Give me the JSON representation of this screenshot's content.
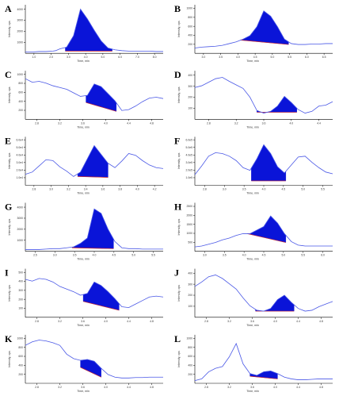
{
  "figure": {
    "panels": [
      {
        "letter": "A",
        "ylabel": "Intensity, cps",
        "xlabel": "Time, min",
        "xticks": [
          "1.0",
          "2.0",
          "3.0",
          "4.0",
          "5.0",
          "6.0",
          "7.0",
          "8.0"
        ],
        "yticks": [
          "1000",
          "2000",
          "3000",
          "4000"
        ]
      },
      {
        "letter": "B",
        "ylabel": "Intensity, cps",
        "xlabel": "Time, min",
        "xticks": [
          "3.0",
          "3.5",
          "4.0",
          "4.5",
          "5.0",
          "5.5",
          "6.0",
          "6.5"
        ],
        "yticks": [
          "200",
          "400",
          "600",
          "800",
          "1000"
        ]
      },
      {
        "letter": "C",
        "ylabel": "Intensity, cps",
        "xlabel": "Time, min",
        "xticks": [
          "2.8",
          "3.2",
          "3.6",
          "4.0",
          "4.4",
          "4.8"
        ],
        "yticks": [
          "200",
          "400",
          "600",
          "800",
          "1000"
        ]
      },
      {
        "letter": "D",
        "ylabel": "Intensity, cps",
        "xlabel": "Time, min",
        "xticks": [
          "2.8",
          "3.2",
          "3.6",
          "4.0",
          "4.4"
        ],
        "yticks": [
          "100",
          "200",
          "300",
          "400"
        ]
      },
      {
        "letter": "E",
        "ylabel": "Intensity, cps",
        "xlabel": "Time, min",
        "xticks": [
          "2.8",
          "3.0",
          "3.2",
          "3.4",
          "3.6",
          "3.8",
          "4.0",
          "4.2"
        ],
        "yticks": [
          "1.0e4",
          "2.0e4",
          "3.0e4",
          "4.0e4",
          "5.0e4",
          "6.0e4"
        ]
      },
      {
        "letter": "F",
        "ylabel": "Intensity, cps",
        "xlabel": "Time, min",
        "xticks": [
          "2.8",
          "3.0",
          "3.5",
          "4.0",
          "4.5",
          "5.0",
          "5.5"
        ],
        "yticks": [
          "1.0e5",
          "2.0e5",
          "3.0e5",
          "4.0e5",
          "5.0e5",
          "6.0e5"
        ]
      },
      {
        "letter": "G",
        "ylabel": "Intensity, cps",
        "xlabel": "Time, min",
        "xticks": [
          "2.5",
          "3.0",
          "3.5",
          "4.0",
          "4.5",
          "5.0",
          "5.5"
        ],
        "yticks": [
          "1000",
          "2000",
          "3000",
          "4000"
        ]
      },
      {
        "letter": "H",
        "ylabel": "Intensity, cps",
        "xlabel": "Time, min",
        "xticks": [
          "3.0",
          "3.5",
          "4.0",
          "4.5",
          "5.0",
          "5.5",
          "6.0"
        ],
        "yticks": [
          "500",
          "1000",
          "1500",
          "2000",
          "2500"
        ]
      },
      {
        "letter": "I",
        "ylabel": "Intensity, cps",
        "xlabel": "Time, min",
        "xticks": [
          "2.8",
          "3.2",
          "3.6",
          "4.0",
          "4.4",
          "4.8"
        ],
        "yticks": [
          "100",
          "200",
          "300",
          "400",
          "500"
        ]
      },
      {
        "letter": "J",
        "ylabel": "Intensity, cps",
        "xlabel": "Time, min",
        "xticks": [
          "2.8",
          "3.2",
          "3.6",
          "4.0",
          "4.4",
          "4.8"
        ],
        "yticks": [
          "100",
          "200",
          "300",
          "400"
        ]
      },
      {
        "letter": "K",
        "ylabel": "Intensity, cps",
        "xlabel": "Time, min",
        "xticks": [
          "2.8",
          "3.2",
          "3.6",
          "4.0",
          "4.4",
          "4.8"
        ],
        "yticks": [
          "200",
          "400",
          "600",
          "800",
          "1000"
        ]
      },
      {
        "letter": "L",
        "ylabel": "Intensity, cps",
        "xlabel": "Time, min",
        "xticks": [
          "2.8",
          "3.2",
          "3.6",
          "4.0",
          "4.4",
          "4.8"
        ],
        "yticks": [
          "200",
          "400",
          "600",
          "800",
          "1000"
        ]
      }
    ]
  },
  "colors": {
    "trace": "#4a58e6",
    "peak_fill": "#0a14d8",
    "baseline": "#d02a2a"
  },
  "chart_data": [
    {
      "panel": "A",
      "type": "line",
      "x": [
        0,
        5,
        10,
        15,
        20,
        22,
        25,
        30,
        35,
        40,
        45,
        50,
        55,
        60,
        65,
        70,
        75,
        80,
        85,
        90,
        95,
        100
      ],
      "y": [
        3,
        3,
        4,
        4,
        5,
        6,
        10,
        14,
        40,
        100,
        78,
        52,
        28,
        12,
        8,
        6,
        5,
        5,
        5,
        5,
        4,
        4
      ],
      "ylim": [
        0,
        110
      ],
      "peak": [
        29,
        63
      ],
      "baseline": [
        5,
        5
      ]
    },
    {
      "panel": "B",
      "type": "line",
      "x": [
        0,
        5,
        10,
        15,
        20,
        25,
        30,
        35,
        40,
        45,
        50,
        55,
        60,
        65,
        70,
        75,
        80,
        85,
        90,
        95,
        100
      ],
      "y": [
        12,
        14,
        15,
        16,
        18,
        22,
        26,
        32,
        40,
        60,
        96,
        84,
        60,
        32,
        22,
        20,
        20,
        21,
        21,
        22,
        22
      ],
      "ylim": [
        0,
        110
      ],
      "peak": [
        33,
        68
      ],
      "baseline": [
        30,
        20
      ]
    },
    {
      "panel": "C",
      "type": "line",
      "x": [
        0,
        5,
        10,
        15,
        20,
        25,
        30,
        35,
        40,
        45,
        50,
        55,
        60,
        65,
        70,
        75,
        80,
        85,
        90,
        95,
        100
      ],
      "y": [
        92,
        84,
        86,
        82,
        76,
        72,
        68,
        60,
        52,
        54,
        80,
        74,
        58,
        42,
        20,
        22,
        30,
        40,
        48,
        50,
        47
      ],
      "ylim": [
        0,
        110
      ],
      "peak": [
        44,
        66
      ],
      "baseline": [
        38,
        18
      ]
    },
    {
      "panel": "D",
      "type": "line",
      "x": [
        0,
        5,
        10,
        15,
        20,
        25,
        30,
        35,
        40,
        45,
        50,
        55,
        60,
        65,
        70,
        75,
        80,
        85,
        90,
        95,
        100
      ],
      "y": [
        72,
        76,
        84,
        92,
        95,
        86,
        78,
        70,
        50,
        20,
        14,
        18,
        30,
        52,
        38,
        22,
        14,
        18,
        30,
        32,
        40
      ],
      "ylim": [
        0,
        110
      ],
      "peak": [
        45,
        74
      ],
      "baseline": [
        16,
        16
      ]
    },
    {
      "panel": "E",
      "type": "line",
      "x": [
        0,
        5,
        10,
        15,
        20,
        25,
        30,
        35,
        40,
        45,
        50,
        55,
        60,
        65,
        70,
        75,
        80,
        85,
        90,
        95,
        100
      ],
      "y": [
        25,
        30,
        44,
        58,
        56,
        42,
        32,
        20,
        30,
        60,
        90,
        70,
        50,
        40,
        55,
        72,
        68,
        56,
        46,
        40,
        38
      ],
      "ylim": [
        0,
        110
      ],
      "peak": [
        38,
        60
      ],
      "baseline": [
        20,
        18
      ]
    },
    {
      "panel": "F",
      "type": "line",
      "x": [
        0,
        5,
        10,
        15,
        20,
        25,
        30,
        35,
        40,
        45,
        50,
        55,
        60,
        65,
        70,
        75,
        80,
        85,
        90,
        95,
        100
      ],
      "y": [
        24,
        44,
        66,
        74,
        72,
        66,
        56,
        40,
        34,
        60,
        92,
        72,
        42,
        28,
        46,
        64,
        66,
        52,
        40,
        30,
        26
      ],
      "ylim": [
        0,
        110
      ],
      "peak": [
        41,
        66
      ],
      "baseline": [
        10,
        10
      ]
    },
    {
      "panel": "G",
      "type": "line",
      "x": [
        0,
        5,
        10,
        15,
        20,
        25,
        30,
        35,
        40,
        45,
        50,
        55,
        60,
        65,
        70,
        75,
        80,
        85,
        90,
        95,
        100
      ],
      "y": [
        4,
        4,
        4,
        5,
        6,
        6,
        8,
        10,
        18,
        30,
        96,
        86,
        50,
        22,
        8,
        6,
        6,
        5,
        5,
        5,
        5
      ],
      "ylim": [
        0,
        110
      ],
      "peak": [
        34,
        64
      ],
      "baseline": [
        8,
        6
      ]
    },
    {
      "panel": "H",
      "type": "line",
      "x": [
        0,
        5,
        10,
        15,
        20,
        25,
        30,
        35,
        40,
        45,
        50,
        55,
        60,
        65,
        70,
        75,
        80,
        85,
        90,
        95,
        100
      ],
      "y": [
        10,
        12,
        16,
        20,
        26,
        30,
        36,
        40,
        40,
        48,
        56,
        80,
        64,
        40,
        22,
        14,
        12,
        12,
        12,
        12,
        12
      ],
      "ylim": [
        0,
        110
      ],
      "peak": [
        38,
        66
      ],
      "baseline": [
        40,
        20
      ]
    },
    {
      "panel": "I",
      "type": "line",
      "x": [
        0,
        5,
        10,
        15,
        20,
        25,
        30,
        35,
        40,
        45,
        50,
        55,
        60,
        65,
        70,
        75,
        80,
        85,
        90,
        95,
        100
      ],
      "y": [
        86,
        82,
        88,
        86,
        80,
        70,
        64,
        58,
        50,
        54,
        80,
        72,
        58,
        42,
        24,
        22,
        30,
        38,
        46,
        48,
        46
      ],
      "ylim": [
        0,
        110
      ],
      "peak": [
        42,
        68
      ],
      "baseline": [
        36,
        16
      ]
    },
    {
      "panel": "J",
      "type": "line",
      "x": [
        0,
        5,
        10,
        15,
        20,
        25,
        30,
        35,
        40,
        45,
        50,
        55,
        60,
        65,
        70,
        75,
        80,
        85,
        90,
        95,
        100
      ],
      "y": [
        70,
        80,
        92,
        96,
        88,
        76,
        64,
        44,
        26,
        16,
        14,
        20,
        40,
        50,
        34,
        20,
        14,
        16,
        24,
        30,
        36
      ],
      "ylim": [
        0,
        110
      ],
      "peak": [
        44,
        72
      ],
      "baseline": [
        14,
        14
      ]
    },
    {
      "panel": "K",
      "type": "line",
      "x": [
        0,
        5,
        10,
        15,
        20,
        25,
        30,
        35,
        40,
        45,
        50,
        55,
        60,
        65,
        70,
        75,
        80,
        85,
        90,
        95,
        100
      ],
      "y": [
        86,
        94,
        98,
        96,
        92,
        86,
        66,
        56,
        52,
        54,
        50,
        34,
        20,
        14,
        12,
        12,
        13,
        13,
        14,
        14,
        14
      ],
      "ylim": [
        0,
        110
      ],
      "peak": [
        40,
        55
      ],
      "baseline": [
        36,
        14
      ]
    },
    {
      "panel": "L",
      "type": "line",
      "x": [
        0,
        5,
        10,
        15,
        20,
        25,
        30,
        35,
        40,
        45,
        50,
        55,
        60,
        65,
        70,
        75,
        80,
        85,
        90,
        95,
        100
      ],
      "y": [
        6,
        10,
        26,
        34,
        38,
        60,
        90,
        44,
        22,
        18,
        26,
        28,
        22,
        14,
        10,
        8,
        8,
        9,
        10,
        10,
        10
      ],
      "ylim": [
        0,
        110
      ],
      "peak": [
        40,
        60
      ],
      "baseline": [
        16,
        10
      ]
    }
  ]
}
